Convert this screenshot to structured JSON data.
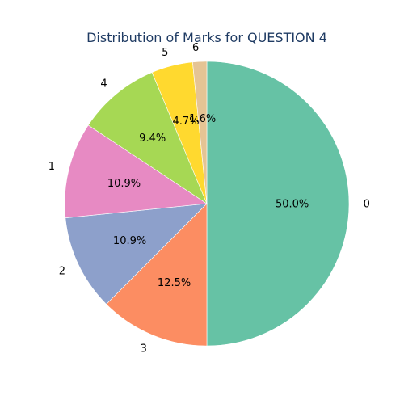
{
  "chart_data": {
    "type": "pie",
    "title": "Distribution of Marks for QUESTION 4",
    "start_angle_deg": 90,
    "direction": "clockwise",
    "legend": "none",
    "slices": [
      {
        "label": "0",
        "value": 50.0,
        "pct_text": "50.0%",
        "color": "#66c2a5"
      },
      {
        "label": "3",
        "value": 12.5,
        "pct_text": "12.5%",
        "color": "#fc8d62"
      },
      {
        "label": "2",
        "value": 10.9,
        "pct_text": "10.9%",
        "color": "#8da0cb"
      },
      {
        "label": "1",
        "value": 10.9,
        "pct_text": "10.9%",
        "color": "#e78ac3"
      },
      {
        "label": "4",
        "value": 9.4,
        "pct_text": "9.4%",
        "color": "#a6d854"
      },
      {
        "label": "5",
        "value": 4.7,
        "pct_text": "4.7%",
        "color": "#ffd92f"
      },
      {
        "label": "6",
        "value": 1.6,
        "pct_text": "1.6%",
        "color": "#e5c494"
      }
    ]
  }
}
